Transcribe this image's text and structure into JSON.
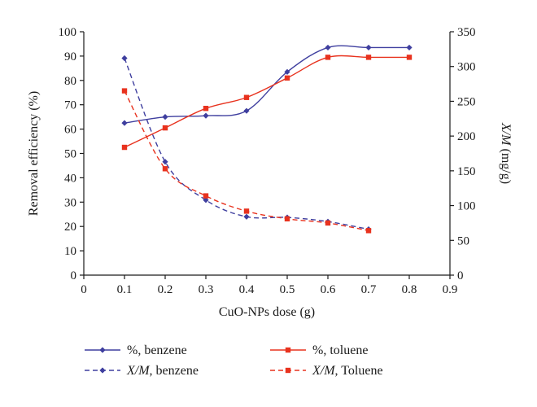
{
  "chart_data": {
    "type": "line",
    "title": "",
    "xlabel": "CuO-NPs dose (g)",
    "ylabel_left": "Removal efficiency (%)",
    "ylabel_right_prefix": "X/M",
    "ylabel_right_suffix": " (mg/g)",
    "xlim": [
      0,
      0.9
    ],
    "ylim_left": [
      0,
      100
    ],
    "ylim_right": [
      0,
      350
    ],
    "x_ticks": [
      "0",
      "0.1",
      "0.2",
      "0.3",
      "0.4",
      "0.5",
      "0.6",
      "0.7",
      "0.8",
      "0.9"
    ],
    "y_left_ticks": [
      "0",
      "10",
      "20",
      "30",
      "40",
      "50",
      "60",
      "70",
      "80",
      "90",
      "100"
    ],
    "y_right_ticks": [
      "0",
      "50",
      "100",
      "150",
      "200",
      "250",
      "300",
      "350"
    ],
    "grid": false,
    "legend_position": "bottom",
    "colors": {
      "benzene": "#3f3f9f",
      "toluene": "#e8321e"
    },
    "series": [
      {
        "name": "%, benzene",
        "name_prefix": "",
        "name_body": "%, benzene",
        "axis": "left",
        "style": "solid",
        "marker": "diamond",
        "color": "#3f3f9f",
        "x": [
          0.1,
          0.2,
          0.3,
          0.4,
          0.5,
          0.6,
          0.7,
          0.8
        ],
        "y": [
          62.5,
          65,
          65.5,
          67.5,
          83.5,
          93.5,
          93.5,
          93.5
        ]
      },
      {
        "name": "%, toluene",
        "name_prefix": "",
        "name_body": "%, toluene",
        "axis": "left",
        "style": "solid",
        "marker": "square",
        "color": "#e8321e",
        "x": [
          0.1,
          0.2,
          0.3,
          0.4,
          0.5,
          0.6,
          0.7,
          0.8
        ],
        "y": [
          52.5,
          60.5,
          68.5,
          73,
          81,
          89.5,
          89.5,
          89.5
        ]
      },
      {
        "name": "X/M, benzene",
        "name_prefix": "X/M",
        "name_body": ", benzene",
        "axis": "right",
        "style": "dashed",
        "marker": "diamond",
        "color": "#3f3f9f",
        "x": [
          0.1,
          0.2,
          0.3,
          0.4,
          0.5,
          0.6,
          0.7
        ],
        "y": [
          312,
          163,
          108,
          84,
          83,
          77,
          66
        ]
      },
      {
        "name": "X/M, Toluene",
        "name_prefix": "X/M",
        "name_body": ", Toluene",
        "axis": "right",
        "style": "dashed",
        "marker": "square",
        "color": "#e8321e",
        "x": [
          0.1,
          0.2,
          0.3,
          0.4,
          0.5,
          0.6,
          0.7
        ],
        "y": [
          265,
          153,
          114,
          92,
          81,
          75,
          64
        ]
      }
    ]
  }
}
